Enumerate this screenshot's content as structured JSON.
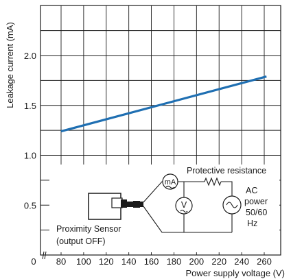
{
  "chart_data": {
    "type": "line",
    "xlabel": "Power supply voltage (V)",
    "ylabel": "Leakage current (mA)",
    "x_ticks": [
      80,
      100,
      120,
      140,
      160,
      180,
      200,
      220,
      240,
      260
    ],
    "x_origin_label": "0",
    "y_ticks": [
      0.5,
      1.0,
      1.5,
      2.0
    ],
    "y_tick_labels": [
      "0.5",
      "1.0",
      "1.5",
      "2.0"
    ],
    "xlim": [
      70,
      270
    ],
    "ylim": [
      0,
      2.5
    ],
    "grid": true,
    "axis_break": true,
    "series": [
      {
        "x": [
          80,
          262
        ],
        "y": [
          1.24,
          1.79
        ],
        "color": "#1f6fb2"
      }
    ]
  },
  "diagram": {
    "protective_resistance_label": "Protective resistance",
    "ammeter_label": "mA",
    "voltmeter_label": "V",
    "sensor_label_line1": "Proximity Sensor",
    "sensor_label_line2": "(output OFF)",
    "source_label_lines": [
      "AC",
      "power",
      "50/60",
      "Hz"
    ]
  }
}
